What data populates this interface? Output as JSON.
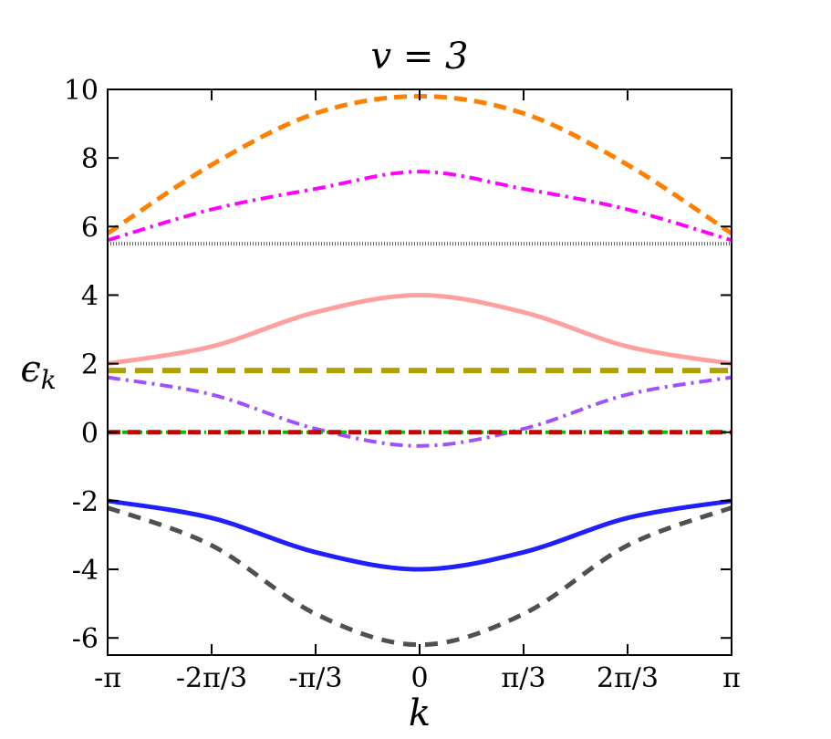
{
  "chart_data": {
    "type": "line",
    "title": "v = 3",
    "xlabel": "k",
    "ylabel": "ϵk",
    "xlim": [
      -3.14159,
      3.14159
    ],
    "ylim": [
      -6.5,
      10
    ],
    "grid": false,
    "xticks": [
      {
        "value": -3.14159,
        "label": "-π"
      },
      {
        "value": -2.0944,
        "label": "-2π/3"
      },
      {
        "value": -1.0472,
        "label": "-π/3"
      },
      {
        "value": 0,
        "label": "0"
      },
      {
        "value": 1.0472,
        "label": "π/3"
      },
      {
        "value": 2.0944,
        "label": "2π/3"
      },
      {
        "value": 3.14159,
        "label": "π"
      }
    ],
    "yticks": [
      {
        "value": -6,
        "label": "-6"
      },
      {
        "value": -4,
        "label": "-4"
      },
      {
        "value": -2,
        "label": "-2"
      },
      {
        "value": 0,
        "label": "0"
      },
      {
        "value": 2,
        "label": "2"
      },
      {
        "value": 4,
        "label": "4"
      },
      {
        "value": 6,
        "label": "6"
      },
      {
        "value": 8,
        "label": "8"
      },
      {
        "value": 10,
        "label": "10"
      }
    ],
    "series": [
      {
        "color": "#ff8000",
        "dash": "14,8",
        "width": 5,
        "x": [
          -3.1416,
          -2.0944,
          -1.0472,
          0,
          1.0472,
          2.0944,
          3.1416
        ],
        "y": [
          5.8,
          7.8,
          9.3,
          9.8,
          9.3,
          7.8,
          5.8
        ]
      },
      {
        "color": "#ff00ff",
        "dash": "14,6,3,6",
        "width": 4,
        "x": [
          -3.1416,
          -2.0944,
          -1.0472,
          0,
          1.0472,
          2.0944,
          3.1416
        ],
        "y": [
          5.6,
          6.5,
          7.1,
          7.6,
          7.1,
          6.5,
          5.6
        ]
      },
      {
        "color": "#666666",
        "dash": "1,2",
        "width": 4,
        "x": [
          -3.1416,
          3.1416
        ],
        "y": [
          5.5,
          5.5
        ]
      },
      {
        "color": "#ffa0a0",
        "dash": "",
        "width": 5,
        "x": [
          -3.1416,
          -2.0944,
          -1.0472,
          0,
          1.0472,
          2.0944,
          3.1416
        ],
        "y": [
          2.0,
          2.5,
          3.5,
          4.0,
          3.5,
          2.5,
          2.0
        ]
      },
      {
        "color": "#b0a000",
        "dash": "20,10",
        "width": 6,
        "x": [
          -3.1416,
          3.1416
        ],
        "y": [
          1.8,
          1.8
        ]
      },
      {
        "color": "#a050ff",
        "dash": "14,6,3,6",
        "width": 4,
        "x": [
          -3.1416,
          -2.0944,
          -1.0472,
          0,
          1.0472,
          2.0944,
          3.1416
        ],
        "y": [
          1.6,
          1.1,
          0.1,
          -0.4,
          0.1,
          1.1,
          1.6
        ]
      },
      {
        "color": "#00c000",
        "dash": "6,4,2,4",
        "width": 4,
        "x": [
          -3.1416,
          3.1416
        ],
        "y": [
          0.0,
          0.0
        ]
      },
      {
        "color": "#d00000",
        "dash": "14,8",
        "width": 5,
        "x": [
          -3.1416,
          3.1416
        ],
        "y": [
          0.0,
          0.0
        ]
      },
      {
        "color": "#2020ff",
        "dash": "",
        "width": 5,
        "x": [
          -3.1416,
          -2.0944,
          -1.0472,
          0,
          1.0472,
          2.0944,
          3.1416
        ],
        "y": [
          -2.0,
          -2.5,
          -3.5,
          -4.0,
          -3.5,
          -2.5,
          -2.0
        ]
      },
      {
        "color": "#505050",
        "dash": "14,10",
        "width": 5,
        "x": [
          -3.1416,
          -2.0944,
          -1.0472,
          0,
          1.0472,
          2.0944,
          3.1416
        ],
        "y": [
          -2.2,
          -3.3,
          -5.3,
          -6.2,
          -5.3,
          -3.3,
          -2.2
        ]
      }
    ]
  }
}
